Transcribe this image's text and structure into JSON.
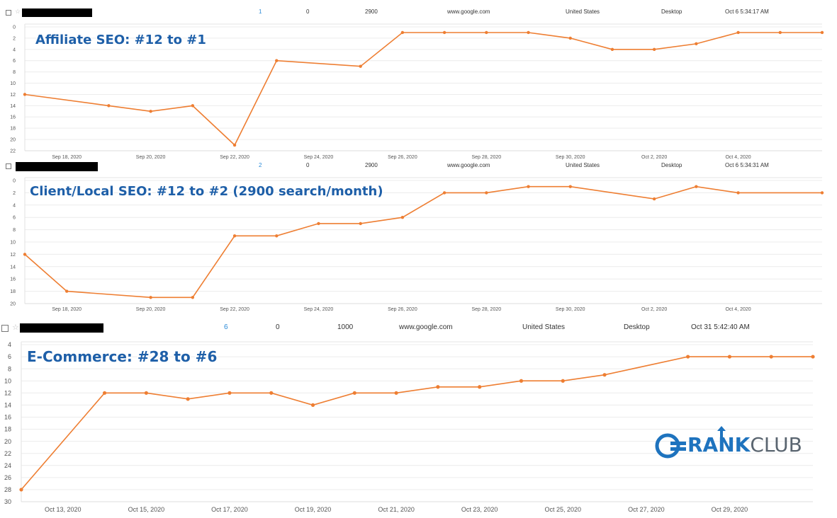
{
  "rows": [
    {
      "position": "1",
      "clicks": "0",
      "volume": "2900",
      "engine": "www.google.com",
      "location": "United States",
      "device": "Desktop",
      "updated": "Oct 6 5:34:17 AM"
    },
    {
      "position": "2",
      "clicks": "0",
      "volume": "2900",
      "engine": "www.google.com",
      "location": "United States",
      "device": "Desktop",
      "updated": "Oct 6 5:34:31 AM"
    },
    {
      "position": "6",
      "clicks": "0",
      "volume": "1000",
      "engine": "www.google.com",
      "location": "United States",
      "device": "Desktop",
      "updated": "Oct 31 5:42:40 AM"
    }
  ],
  "logo": {
    "part1": "RANK",
    "part2": "CLUB",
    "color": "#1e73be"
  },
  "chart_data": [
    {
      "type": "line",
      "title": "Affiliate SEO: #12 to #1",
      "x": [
        "Sep 17",
        "Sep 19",
        "Sep 20",
        "Sep 21",
        "Sep 22",
        "Sep 23",
        "Sep 25",
        "Sep 26",
        "Sep 27",
        "Sep 28",
        "Sep 29",
        "Sep 30",
        "Oct 1",
        "Oct 2",
        "Oct 3",
        "Oct 4",
        "Oct 5",
        "Oct 6"
      ],
      "series": [
        {
          "values": [
            12,
            14,
            15,
            14,
            21,
            6,
            7,
            1,
            1,
            1,
            1,
            2,
            4,
            4,
            3,
            1,
            1,
            1
          ]
        }
      ],
      "xlabel": "",
      "ylabel": "",
      "ylim": [
        0,
        22
      ],
      "y_inverted": true,
      "yticks": [
        "0",
        "2",
        "4",
        "6",
        "8",
        "10",
        "12",
        "14",
        "16",
        "18",
        "20",
        "22"
      ],
      "xtick_labels": [
        "Sep 18, 2020",
        "Sep 20, 2020",
        "Sep 22, 2020",
        "Sep 24, 2020",
        "Sep 26, 2020",
        "Sep 28, 2020",
        "Sep 30, 2020",
        "Oct 2, 2020",
        "Oct 4, 2020"
      ],
      "line_color": "#ee7e32",
      "grid": true
    },
    {
      "type": "line",
      "title": "Client/Local SEO: #12 to #2 (2900 search/month)",
      "x": [
        "Sep 17",
        "Sep 18",
        "Sep 20",
        "Sep 21",
        "Sep 22",
        "Sep 23",
        "Sep 24",
        "Sep 25",
        "Sep 26",
        "Sep 27",
        "Sep 28",
        "Sep 29",
        "Sep 30",
        "Oct 2",
        "Oct 3",
        "Oct 4",
        "Oct 6"
      ],
      "series": [
        {
          "values": [
            12,
            18,
            19,
            19,
            9,
            9,
            7,
            7,
            6,
            2,
            2,
            1,
            1,
            3,
            1,
            2,
            2
          ]
        }
      ],
      "xlabel": "",
      "ylabel": "",
      "ylim": [
        0,
        20
      ],
      "y_inverted": true,
      "yticks": [
        "0",
        "2",
        "4",
        "6",
        "8",
        "10",
        "12",
        "14",
        "16",
        "18",
        "20"
      ],
      "xtick_labels": [
        "Sep 18, 2020",
        "Sep 20, 2020",
        "Sep 22, 2020",
        "Sep 24, 2020",
        "Sep 26, 2020",
        "Sep 28, 2020",
        "Sep 30, 2020",
        "Oct 2, 2020",
        "Oct 4, 2020"
      ],
      "line_color": "#ee7e32",
      "grid": true
    },
    {
      "type": "line",
      "title": "E-Commerce: #28 to #6",
      "x": [
        "Oct 12",
        "Oct 14",
        "Oct 15",
        "Oct 16",
        "Oct 17",
        "Oct 18",
        "Oct 19",
        "Oct 20",
        "Oct 21",
        "Oct 22",
        "Oct 23",
        "Oct 24",
        "Oct 25",
        "Oct 26",
        "Oct 28",
        "Oct 29",
        "Oct 30",
        "Oct 31"
      ],
      "series": [
        {
          "values": [
            28,
            12,
            12,
            13,
            12,
            12,
            14,
            12,
            12,
            11,
            11,
            10,
            10,
            9,
            6,
            6,
            6,
            6
          ]
        }
      ],
      "xlabel": "",
      "ylabel": "",
      "ylim": [
        4,
        30
      ],
      "y_inverted": true,
      "yticks": [
        "4",
        "6",
        "8",
        "10",
        "12",
        "14",
        "16",
        "18",
        "20",
        "22",
        "24",
        "26",
        "28",
        "30"
      ],
      "xtick_labels": [
        "Oct 13, 2020",
        "Oct 15, 2020",
        "Oct 17, 2020",
        "Oct 19, 2020",
        "Oct 21, 2020",
        "Oct 23, 2020",
        "Oct 25, 2020",
        "Oct 27, 2020",
        "Oct 29, 2020"
      ],
      "line_color": "#ee7e32",
      "grid": true
    }
  ]
}
